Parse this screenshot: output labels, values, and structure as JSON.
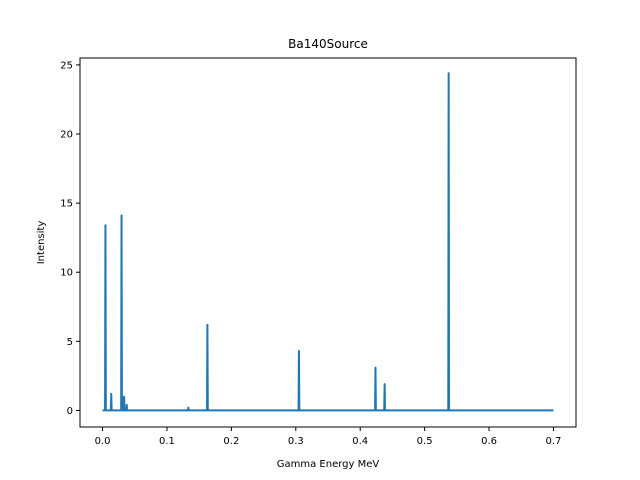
{
  "chart_data": {
    "type": "line",
    "title": "Ba140Source",
    "xlabel": "Gamma Energy MeV",
    "ylabel": "Intensity",
    "xlim": [
      -0.035,
      0.735
    ],
    "ylim": [
      -1.2,
      25.5
    ],
    "xticks": [
      0.0,
      0.1,
      0.2,
      0.3,
      0.4,
      0.5,
      0.6,
      0.7
    ],
    "xtick_labels": [
      "0.0",
      "0.1",
      "0.2",
      "0.3",
      "0.4",
      "0.5",
      "0.6",
      "0.7"
    ],
    "yticks": [
      0,
      5,
      10,
      15,
      20,
      25
    ],
    "ytick_labels": [
      "0",
      "5",
      "10",
      "15",
      "20",
      "25"
    ],
    "grid": false,
    "series_color": "#1f77b4",
    "x_range": [
      0.0,
      0.7
    ],
    "baseline": 0,
    "peaks": [
      {
        "x": 0.0045,
        "y": 13.4
      },
      {
        "x": 0.0135,
        "y": 1.2
      },
      {
        "x": 0.0295,
        "y": 14.1
      },
      {
        "x": 0.0305,
        "y": 0.9
      },
      {
        "x": 0.0335,
        "y": 1.0
      },
      {
        "x": 0.0375,
        "y": 0.4
      },
      {
        "x": 0.1332,
        "y": 0.2
      },
      {
        "x": 0.1628,
        "y": 6.2
      },
      {
        "x": 0.3049,
        "y": 4.3
      },
      {
        "x": 0.4237,
        "y": 3.1
      },
      {
        "x": 0.4379,
        "y": 1.9
      },
      {
        "x": 0.5373,
        "y": 24.4
      }
    ]
  }
}
